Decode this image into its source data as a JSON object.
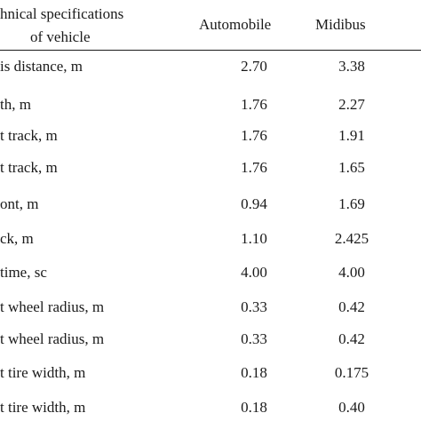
{
  "header": {
    "param_line1": "hnical specifications",
    "param_line2": "of vehicle",
    "col_automobile": "Automobile",
    "col_midibus": "Midibus"
  },
  "rows": [
    {
      "param": "is distance, m",
      "automobile": "2.70",
      "midibus": "3.38"
    },
    {
      "param": "th, m",
      "automobile": "1.76",
      "midibus": "2.27"
    },
    {
      "param": "t track, m",
      "automobile": "1.76",
      "midibus": "1.91"
    },
    {
      "param": "t track, m",
      "automobile": "1.76",
      "midibus": "1.65"
    },
    {
      "param": "ont, m",
      "automobile": "0.94",
      "midibus": "1.69"
    },
    {
      "param": "ck, m",
      "automobile": "1.10",
      "midibus": "2.425"
    },
    {
      "param": "time, sc",
      "automobile": "4.00",
      "midibus": "4.00"
    },
    {
      "param": "t wheel radius, m",
      "automobile": "0.33",
      "midibus": "0.42"
    },
    {
      "param": "t wheel radius, m",
      "automobile": "0.33",
      "midibus": "0.42"
    },
    {
      "param": "t tire width, m",
      "automobile": "0.18",
      "midibus": "0.175"
    },
    {
      "param": "t tire width, m",
      "automobile": "0.18",
      "midibus": "0.40"
    }
  ]
}
